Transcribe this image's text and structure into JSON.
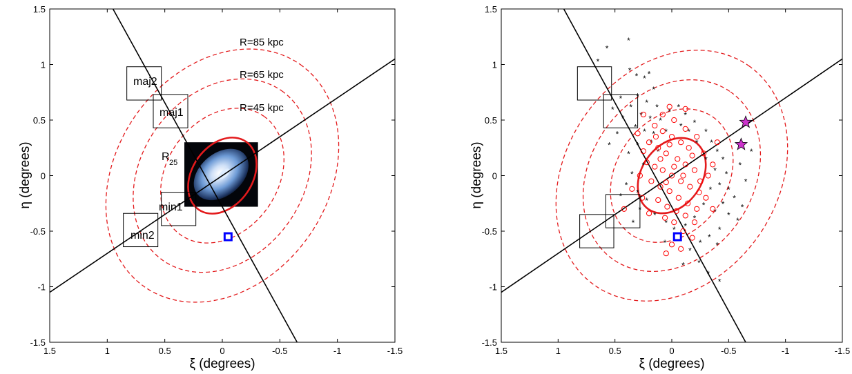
{
  "colors": {
    "ellipse": "#e31a1c",
    "axes_line": "#000000",
    "box": "#000000",
    "square_marker": "#0000ff",
    "star_marker": "#cc33cc",
    "blue_points": "#1f2fd6",
    "red_points": "#ff0000",
    "galaxy_core": "#dfeeff",
    "galaxy_halo": "#5f8fd1"
  },
  "chart_data": [
    {
      "type": "scatter",
      "xlabel": "ξ (degrees)",
      "ylabel": "η (degrees)",
      "xlim": [
        1.5,
        -1.5
      ],
      "ylim": [
        -1.5,
        1.5
      ],
      "x_reversed": true,
      "xticks": [
        "1.5",
        "1",
        "0.5",
        "0",
        "-0.5",
        "-1",
        "-1.5"
      ],
      "xtick_values": [
        1.5,
        1,
        0.5,
        0,
        -0.5,
        -1,
        -1.5
      ],
      "yticks": [
        "-1.5",
        "-1",
        "-0.5",
        "0",
        "0.5",
        "1",
        "1.5"
      ],
      "ytick_values": [
        -1.5,
        -1,
        -0.5,
        0,
        0.5,
        1,
        1.5
      ],
      "dashed_ellipses": [
        {
          "label": "R=85 kpc",
          "a": 1.18,
          "b": 0.95,
          "angle_deg": -55
        },
        {
          "label": "R=65 kpc",
          "a": 0.9,
          "b": 0.73,
          "angle_deg": -55
        },
        {
          "label": "R=45 kpc",
          "a": 0.63,
          "b": 0.5,
          "angle_deg": -55
        }
      ],
      "r25_ellipse": {
        "label_main": "R",
        "label_sub": "25",
        "a": 0.36,
        "b": 0.27,
        "angle_deg": -55
      },
      "axis_lines": [
        {
          "name": "major",
          "x1": 0.95,
          "y1": 1.5,
          "x2": -0.65,
          "y2": -1.5
        },
        {
          "name": "minor",
          "x1": 1.5,
          "y1": -1.05,
          "x2": -1.5,
          "y2": 1.05
        }
      ],
      "fields": [
        {
          "label": "maj2",
          "x": 0.68,
          "y": 0.83
        },
        {
          "label": "maj1",
          "x": 0.45,
          "y": 0.58
        },
        {
          "label": "min1",
          "x": 0.38,
          "y": -0.3
        },
        {
          "label": "min2",
          "x": 0.71,
          "y": -0.49
        }
      ],
      "field_size": 0.3,
      "square_marker": {
        "x": -0.05,
        "y": -0.55
      },
      "galaxy_image": {
        "x_left": 0.33,
        "x_right": -0.31,
        "y_top": 0.3,
        "y_bottom": -0.28
      }
    },
    {
      "type": "scatter",
      "xlabel": "ξ (degrees)",
      "ylabel": "η (degrees)",
      "xlim": [
        1.5,
        -1.5
      ],
      "ylim": [
        -1.5,
        1.5
      ],
      "x_reversed": true,
      "xticks": [
        "1.5",
        "1",
        "0.5",
        "0",
        "-0.5",
        "-1",
        "-1.5"
      ],
      "xtick_values": [
        1.5,
        1,
        0.5,
        0,
        -0.5,
        -1,
        -1.5
      ],
      "yticks": [
        "-1.5",
        "-1",
        "-0.5",
        "0",
        "0.5",
        "1",
        "1.5"
      ],
      "ytick_values": [
        -1.5,
        -1,
        -0.5,
        0,
        0.5,
        1,
        1.5
      ],
      "dashed_ellipses": [
        {
          "a": 1.18,
          "b": 0.95,
          "angle_deg": -55
        },
        {
          "a": 0.9,
          "b": 0.73,
          "angle_deg": -55
        },
        {
          "a": 0.63,
          "b": 0.5,
          "angle_deg": -55
        }
      ],
      "r25_ellipse": {
        "a": 0.36,
        "b": 0.27,
        "angle_deg": -55
      },
      "axis_lines": [
        {
          "name": "major",
          "x1": 0.95,
          "y1": 1.5,
          "x2": -0.65,
          "y2": -1.5
        },
        {
          "name": "minor",
          "x1": 1.5,
          "y1": -1.05,
          "x2": -1.5,
          "y2": 1.05
        }
      ],
      "fields": [
        {
          "x": 0.68,
          "y": 0.83
        },
        {
          "x": 0.45,
          "y": 0.58
        },
        {
          "x": 0.43,
          "y": -0.32
        },
        {
          "x": 0.66,
          "y": -0.5
        }
      ],
      "field_size": 0.3,
      "square_marker": {
        "x": -0.05,
        "y": -0.55
      },
      "stars": [
        {
          "x": -0.65,
          "y": 0.48
        },
        {
          "x": -0.61,
          "y": 0.28
        }
      ],
      "series": [
        {
          "marker": "asterisk",
          "color": "blue",
          "points": [
            [
              0.38,
              1.22
            ],
            [
              0.57,
              1.15
            ],
            [
              0.65,
              1.03
            ],
            [
              0.37,
              0.95
            ],
            [
              0.31,
              0.9
            ],
            [
              0.24,
              0.88
            ],
            [
              0.16,
              0.78
            ],
            [
              0.3,
              0.72
            ],
            [
              0.22,
              0.66
            ],
            [
              0.13,
              0.62
            ],
            [
              0.36,
              0.62
            ],
            [
              0.52,
              0.6
            ],
            [
              0.27,
              0.55
            ],
            [
              0.19,
              0.52
            ],
            [
              0.1,
              0.5
            ],
            [
              0.43,
              0.52
            ],
            [
              0.02,
              0.58
            ],
            [
              -0.06,
              0.62
            ],
            [
              -0.12,
              0.55
            ],
            [
              -0.2,
              0.48
            ],
            [
              0.32,
              0.44
            ],
            [
              0.24,
              0.4
            ],
            [
              0.16,
              0.38
            ],
            [
              -0.3,
              0.4
            ],
            [
              -0.35,
              0.3
            ],
            [
              -0.4,
              0.22
            ],
            [
              -0.45,
              0.15
            ],
            [
              -0.38,
              0.05
            ],
            [
              -0.48,
              0.02
            ],
            [
              -0.42,
              -0.08
            ],
            [
              -0.5,
              -0.12
            ],
            [
              -0.55,
              -0.2
            ],
            [
              -0.45,
              -0.25
            ],
            [
              -0.38,
              -0.32
            ],
            [
              -0.5,
              -0.35
            ],
            [
              -0.58,
              -0.4
            ],
            [
              -0.42,
              -0.48
            ],
            [
              -0.33,
              -0.55
            ],
            [
              -0.4,
              -0.62
            ],
            [
              -0.25,
              -0.6
            ],
            [
              -0.16,
              -0.67
            ],
            [
              -0.1,
              -0.8
            ],
            [
              -0.24,
              -0.78
            ],
            [
              -0.32,
              -0.88
            ],
            [
              -0.42,
              -0.95
            ],
            [
              0.25,
              0.1
            ],
            [
              0.35,
              0.02
            ],
            [
              0.4,
              -0.08
            ],
            [
              0.3,
              -0.15
            ],
            [
              0.22,
              -0.22
            ],
            [
              0.45,
              -0.18
            ],
            [
              0.38,
              0.2
            ],
            [
              0.3,
              0.28
            ],
            [
              0.18,
              0.3
            ],
            [
              0.12,
              0.22
            ],
            [
              0.28,
              -0.3
            ],
            [
              0.15,
              -0.35
            ],
            [
              0.05,
              -0.42
            ],
            [
              -0.02,
              -0.48
            ],
            [
              -0.12,
              -0.45
            ],
            [
              -0.2,
              -0.38
            ],
            [
              -0.28,
              -0.26
            ],
            [
              -0.22,
              0.3
            ],
            [
              -0.15,
              0.4
            ],
            [
              -0.08,
              0.45
            ],
            [
              0.05,
              0.4
            ],
            [
              -0.6,
              0.1
            ],
            [
              -0.65,
              -0.05
            ],
            [
              -0.62,
              -0.28
            ],
            [
              -0.7,
              0.22
            ],
            [
              0.55,
              0.28
            ],
            [
              0.48,
              0.38
            ],
            [
              0.45,
              0.7
            ],
            [
              0.2,
              0.92
            ],
            [
              -0.3,
              0.15
            ],
            [
              -0.34,
              -0.12
            ],
            [
              0.34,
              -0.42
            ],
            [
              0.06,
              -0.6
            ]
          ]
        },
        {
          "marker": "circle",
          "color": "red",
          "points": [
            [
              0.15,
              0.45
            ],
            [
              0.08,
              0.4
            ],
            [
              0.0,
              0.35
            ],
            [
              -0.08,
              0.3
            ],
            [
              -0.15,
              0.25
            ],
            [
              0.2,
              0.3
            ],
            [
              0.12,
              0.25
            ],
            [
              0.05,
              0.2
            ],
            [
              -0.05,
              0.15
            ],
            [
              -0.12,
              0.1
            ],
            [
              -0.2,
              0.05
            ],
            [
              0.22,
              0.12
            ],
            [
              0.15,
              0.08
            ],
            [
              0.08,
              0.05
            ],
            [
              0.0,
              0.0
            ],
            [
              -0.08,
              -0.05
            ],
            [
              -0.16,
              -0.1
            ],
            [
              -0.24,
              -0.15
            ],
            [
              0.18,
              -0.05
            ],
            [
              0.1,
              -0.1
            ],
            [
              0.02,
              -0.14
            ],
            [
              -0.06,
              -0.2
            ],
            [
              -0.14,
              -0.25
            ],
            [
              -0.22,
              -0.3
            ],
            [
              0.12,
              -0.22
            ],
            [
              0.04,
              -0.28
            ],
            [
              -0.04,
              -0.32
            ],
            [
              -0.12,
              -0.36
            ],
            [
              0.06,
              -0.38
            ],
            [
              -0.02,
              -0.42
            ],
            [
              -0.1,
              -0.5
            ],
            [
              0.0,
              -0.62
            ],
            [
              0.05,
              -0.7
            ],
            [
              -0.08,
              -0.66
            ],
            [
              -0.18,
              -0.56
            ],
            [
              -0.28,
              0.2
            ],
            [
              -0.32,
              0.0
            ],
            [
              -0.3,
              -0.2
            ],
            [
              0.28,
              0.0
            ],
            [
              0.26,
              -0.2
            ],
            [
              0.25,
              0.22
            ],
            [
              -0.02,
              0.5
            ],
            [
              0.08,
              0.55
            ],
            [
              -0.12,
              0.42
            ],
            [
              -0.22,
              0.35
            ],
            [
              0.3,
              0.38
            ],
            [
              -0.36,
              0.1
            ],
            [
              -0.36,
              -0.3
            ],
            [
              0.2,
              -0.34
            ],
            [
              0.35,
              -0.12
            ],
            [
              0.1,
              0.15
            ],
            [
              -0.02,
              0.08
            ],
            [
              -0.1,
              0.0
            ],
            [
              0.05,
              -0.06
            ],
            [
              -0.18,
              0.18
            ],
            [
              0.14,
              0.35
            ],
            [
              0.02,
              0.28
            ],
            [
              -0.25,
              -0.05
            ],
            [
              -0.2,
              -0.42
            ],
            [
              0.02,
              0.62
            ],
            [
              -0.12,
              0.6
            ],
            [
              0.25,
              0.55
            ],
            [
              -0.4,
              0.3
            ],
            [
              0.42,
              -0.3
            ]
          ]
        }
      ]
    }
  ],
  "panel_text": {
    "left": {
      "r85": "R=85 kpc",
      "r65": "R=65 kpc",
      "r45": "R=45 kpc",
      "r25_main": "R",
      "r25_sub": "25",
      "maj2": "maj2",
      "maj1": "maj1",
      "min1": "min1",
      "min2": "min2"
    }
  }
}
